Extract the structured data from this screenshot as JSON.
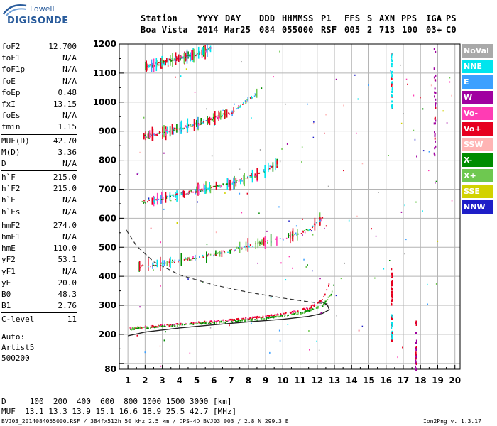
{
  "logo": {
    "top": "Lowell",
    "bottom": "DIGISONDE"
  },
  "header": {
    "labels": [
      "Station",
      "YYYY",
      "DAY",
      "DDD",
      "HHMMSS",
      "P1",
      "FFS",
      "S",
      "AXN",
      "PPS",
      "IGA",
      "PS"
    ],
    "values": [
      "Boa Vista",
      "2014",
      "Mar25",
      "084",
      "055000",
      "RSF",
      "005",
      "2",
      "713",
      "100",
      "03+",
      "C0"
    ]
  },
  "params": {
    "group1": [
      {
        "name": "foF2",
        "value": "12.700"
      },
      {
        "name": "foF1",
        "value": "N/A"
      },
      {
        "name": "foF1p",
        "value": "N/A"
      },
      {
        "name": "foE",
        "value": "N/A"
      },
      {
        "name": "foEp",
        "value": "0.48"
      },
      {
        "name": "fxI",
        "value": "13.15"
      },
      {
        "name": "foEs",
        "value": "N/A"
      },
      {
        "name": "fmin",
        "value": "1.15"
      }
    ],
    "group2": [
      {
        "name": "MUF(D)",
        "value": "42.70"
      },
      {
        "name": "M(D)",
        "value": "3.36"
      },
      {
        "name": "D",
        "value": "N/A"
      }
    ],
    "group3": [
      {
        "name": "h`F",
        "value": "215.0"
      },
      {
        "name": "h`F2",
        "value": "215.0"
      },
      {
        "name": "h`E",
        "value": "N/A"
      },
      {
        "name": "h`Es",
        "value": "N/A"
      }
    ],
    "group4": [
      {
        "name": "hmF2",
        "value": "274.0"
      },
      {
        "name": "hmF1",
        "value": "N/A"
      },
      {
        "name": "hmE",
        "value": "110.0"
      },
      {
        "name": "yF2",
        "value": "53.1"
      },
      {
        "name": "yF1",
        "value": "N/A"
      },
      {
        "name": "yE",
        "value": "20.0"
      },
      {
        "name": "B0",
        "value": "48.3"
      },
      {
        "name": "B1",
        "value": "2.76"
      }
    ],
    "group5": [
      {
        "name": "C-level",
        "value": "11"
      }
    ],
    "auto": [
      "Auto:",
      "Artist5",
      "500200"
    ]
  },
  "legend": [
    {
      "label": "NoVal",
      "color": "#a9a9a9"
    },
    {
      "label": "NNE",
      "color": "#00e5ee"
    },
    {
      "label": "E",
      "color": "#3ca0ff"
    },
    {
      "label": "W",
      "color": "#a000a0"
    },
    {
      "label": "Vo-",
      "color": "#ff3cb4"
    },
    {
      "label": "Vo+",
      "color": "#e6001e"
    },
    {
      "label": "SSW",
      "color": "#ffb4b4"
    },
    {
      "label": "X-",
      "color": "#008c00"
    },
    {
      "label": "X+",
      "color": "#6ec850"
    },
    {
      "label": "SSE",
      "color": "#d2d200"
    },
    {
      "label": "NNW",
      "color": "#1e1ec8"
    }
  ],
  "footer": {
    "d_line": "D     100  200  400  600  800 1000 1500 3000 [km]",
    "muf_line": "MUF  13.1 13.3 13.9 15.1 16.6 18.9 25.5 42.7 [MHz]",
    "file_info": "BVJ03_2014084055000.RSF / 384fx512h 50 kHz 2.5 km / DPS-4D BVJ03 003 / 2.8 N 299.3 E",
    "version": "Ion2Png v. 1.3.17"
  },
  "chart_data": {
    "type": "scatter",
    "title": "",
    "xlabel": "",
    "ylabel": "",
    "xlim": [
      0.5,
      20.3
    ],
    "ylim": [
      80,
      1200
    ],
    "x_ticks": [
      1,
      2,
      3,
      4,
      5,
      6,
      7,
      8,
      9,
      10,
      11,
      12,
      13,
      14,
      15,
      16,
      17,
      18,
      19,
      20
    ],
    "y_ticks": [
      80,
      100,
      200,
      300,
      400,
      500,
      600,
      700,
      800,
      900,
      1000,
      1100,
      1200
    ],
    "y_tick_labels": [
      80,
      200,
      300,
      400,
      500,
      600,
      700,
      800,
      900,
      1000,
      1100,
      1200
    ],
    "grid": true,
    "traces": [
      {
        "name": "O-trace 1st hop",
        "x": [
          1.1,
          2,
          4,
          6,
          8,
          10,
          11.5,
          12.3,
          12.7
        ],
        "y": [
          220,
          225,
          235,
          245,
          255,
          270,
          290,
          320,
          380
        ]
      },
      {
        "name": "X-trace 1st hop",
        "x": [
          1.1,
          3,
          6,
          9,
          11,
          12.3,
          12.8,
          13.0
        ],
        "y": [
          218,
          228,
          240,
          255,
          272,
          300,
          340,
          390
        ]
      },
      {
        "name": "2nd hop",
        "x": [
          1.6,
          2.5,
          4,
          6,
          8,
          10,
          11.5,
          12.4
        ],
        "y": [
          432,
          440,
          455,
          475,
          505,
          530,
          560,
          605
        ]
      },
      {
        "name": "3rd hop",
        "x": [
          1.8,
          3,
          5,
          7,
          8.5,
          9.7
        ],
        "y": [
          655,
          670,
          695,
          720,
          750,
          790
        ]
      },
      {
        "name": "4th hop",
        "x": [
          1.9,
          3,
          5,
          7,
          8.5
        ],
        "y": [
          880,
          895,
          925,
          965,
          1030
        ]
      },
      {
        "name": "5th hop",
        "x": [
          2.0,
          3.5,
          5.0,
          5.8
        ],
        "y": [
          1120,
          1145,
          1165,
          1185
        ]
      }
    ],
    "profile_solid": {
      "x": [
        1.0,
        2,
        4,
        6,
        8,
        10,
        11.5,
        12.3,
        12.7,
        12.6,
        12.2
      ],
      "y": [
        195,
        208,
        222,
        233,
        243,
        252,
        262,
        272,
        285,
        300,
        315
      ]
    },
    "profile_dashed": {
      "x": [
        0.9,
        1.5,
        2.5,
        4,
        6,
        8,
        10,
        11.5,
        12.6
      ],
      "y": [
        560,
        505,
        450,
        405,
        370,
        345,
        325,
        312,
        305
      ]
    }
  }
}
